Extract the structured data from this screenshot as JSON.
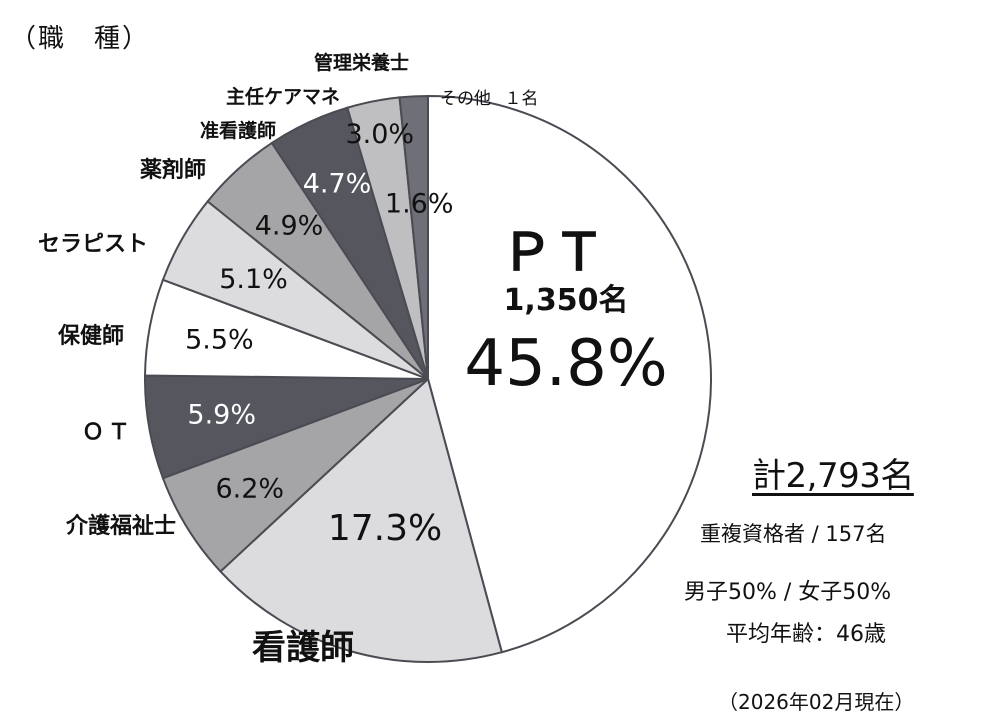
{
  "title": "（職　種）",
  "chart_data": {
    "type": "pie",
    "title": "（職　種）",
    "slices": [
      {
        "label": "ＰＴ",
        "percent": 45.8,
        "percent_label": "45.8%",
        "count_label": "1,350名",
        "color": "#ffffff",
        "text_color": "#111111"
      },
      {
        "label": "看護師",
        "percent": 17.3,
        "percent_label": "17.3%",
        "color": "#dcdcdf",
        "text_color": "#111111"
      },
      {
        "label": "介護福祉士",
        "percent": 6.2,
        "percent_label": "6.2%",
        "color": "#a5a5a8",
        "text_color": "#111111"
      },
      {
        "label": "ＯＴ",
        "percent": 5.9,
        "percent_label": "5.9%",
        "color": "#55565e",
        "text_color": "#ffffff"
      },
      {
        "label": "保健師",
        "percent": 5.5,
        "percent_label": "5.5%",
        "color": "#ffffff",
        "text_color": "#111111"
      },
      {
        "label": "セラピスト",
        "percent": 5.1,
        "percent_label": "5.1%",
        "color": "#dcdcdf",
        "text_color": "#111111"
      },
      {
        "label": "薬剤師",
        "percent": 4.9,
        "percent_label": "4.9%",
        "color": "#a5a5a8",
        "text_color": "#111111"
      },
      {
        "label": "准看護師",
        "percent": 4.7,
        "percent_label": "4.7%",
        "color": "#55565e",
        "text_color": "#ffffff"
      },
      {
        "label": "主任ケアマネ",
        "percent": 3.0,
        "percent_label": "3.0%",
        "color": "#bfbfc2",
        "text_color": "#111111"
      },
      {
        "label": "管理栄養士",
        "percent": 1.6,
        "percent_label": "1.6%",
        "color": "#6e6f77",
        "text_color": "#111111"
      },
      {
        "label": "その他",
        "count_label": "１名",
        "percent": 0.0,
        "color": "#ffffff"
      }
    ]
  },
  "summary": {
    "total": "計2,793名",
    "duplicates": "重複資格者 / 157名",
    "gender": "男子50% /  女子50%",
    "average_age": "平均年齢：46歳",
    "as_of": "（2026年02月現在）"
  }
}
